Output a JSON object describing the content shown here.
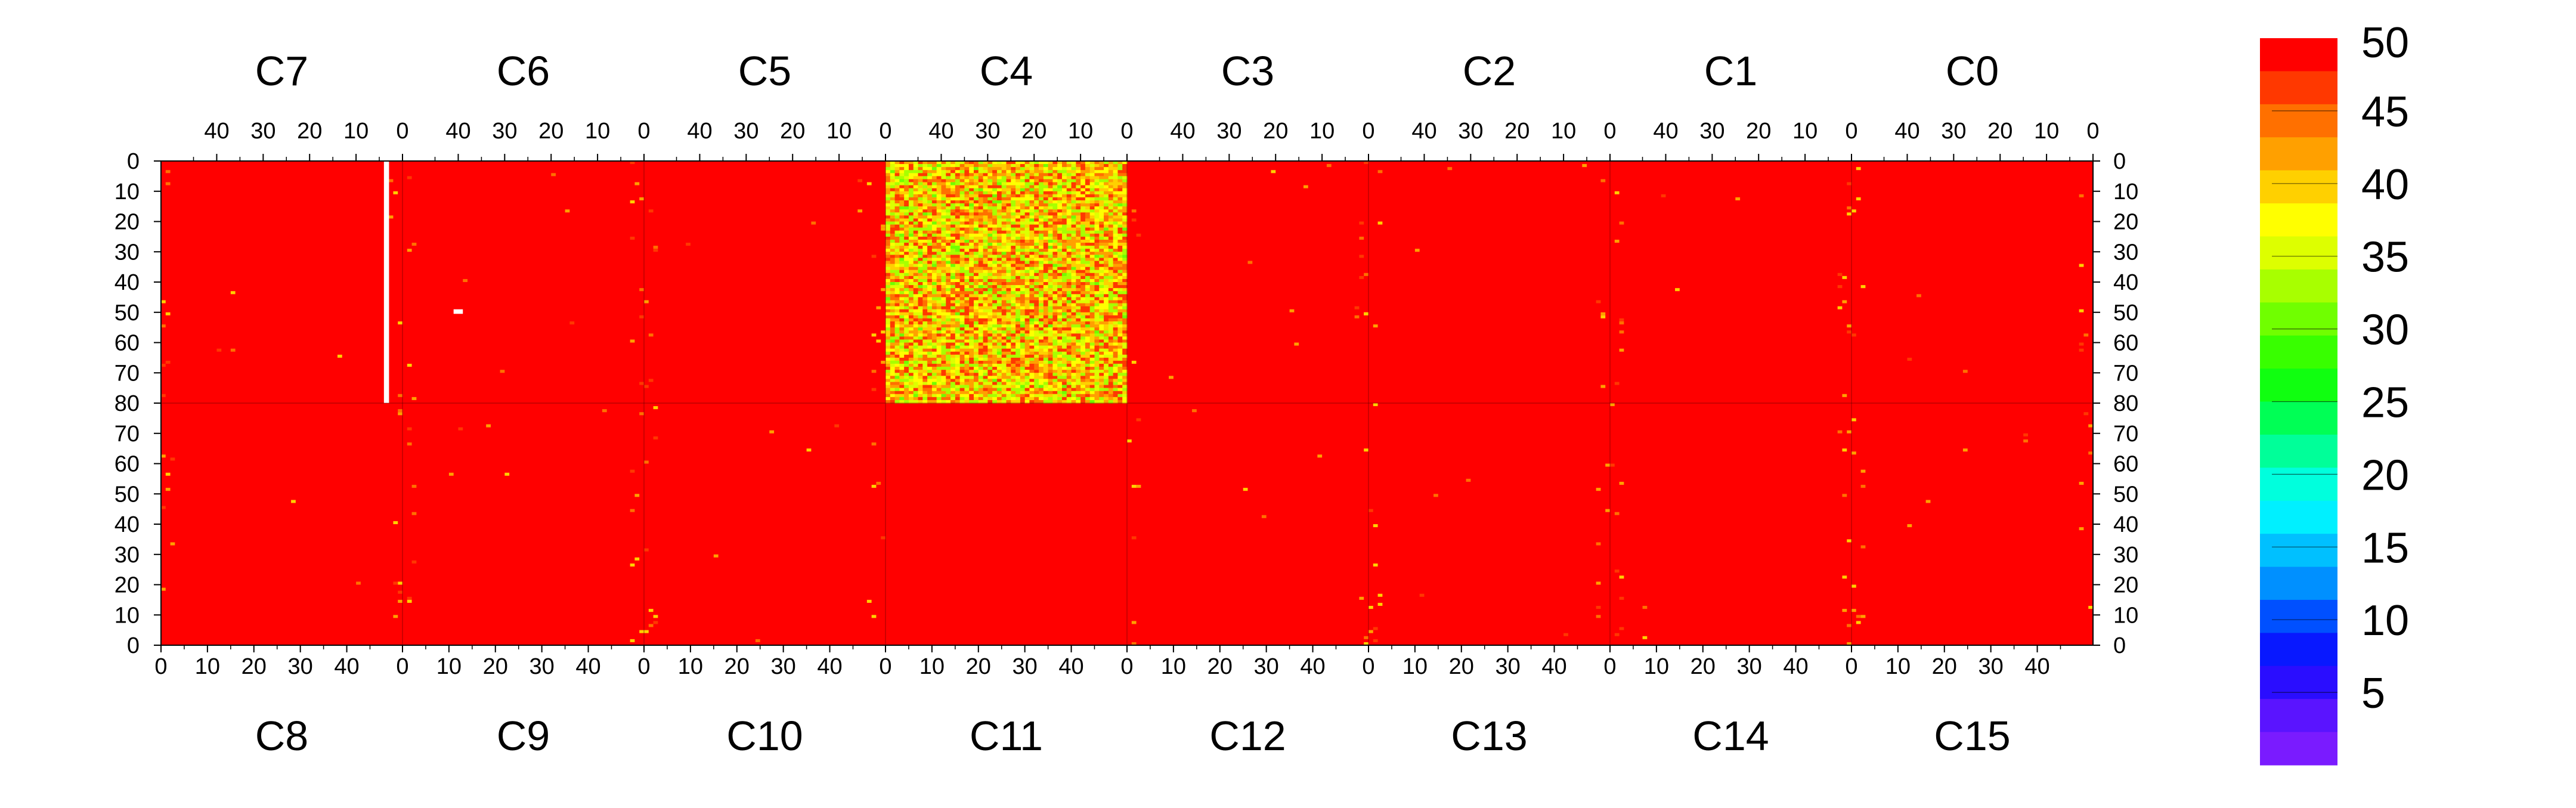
{
  "chart_data": {
    "type": "heatmap",
    "top_chips": [
      "C7",
      "C6",
      "C5",
      "C4",
      "C3",
      "C2",
      "C1",
      "C0"
    ],
    "bottom_chips": [
      "C8",
      "C9",
      "C10",
      "C11",
      "C12",
      "C13",
      "C14",
      "C15"
    ],
    "top_x_ticks": [
      "40",
      "30",
      "20",
      "10",
      "0"
    ],
    "bottom_x_ticks": [
      "0",
      "10",
      "20",
      "30",
      "40"
    ],
    "y_ticks": [
      "0",
      "10",
      "20",
      "30",
      "40",
      "50",
      "60",
      "70",
      "80",
      "70",
      "60",
      "50",
      "40",
      "30",
      "20",
      "10",
      "0"
    ],
    "columns_per_chip": 52,
    "rows_per_half": 80,
    "zrange": [
      0,
      50
    ],
    "colorbar_ticks": [
      "50",
      "45",
      "40",
      "35",
      "30",
      "25",
      "20",
      "15",
      "10",
      "5"
    ],
    "color_palette": [
      "#7a1bff",
      "#5a14ff",
      "#2a0dff",
      "#0818ff",
      "#0050ff",
      "#0090ff",
      "#00c0ff",
      "#00f0ff",
      "#00ffdd",
      "#00ff99",
      "#00ff55",
      "#10ff10",
      "#38ff00",
      "#70ff00",
      "#a8ff00",
      "#ddff00",
      "#ffff00",
      "#ffd000",
      "#ffa000",
      "#ff7000",
      "#ff3800",
      "#ff0000"
    ],
    "uniform_value": 50,
    "noisy_region": {
      "chip": "C4",
      "value_range": [
        33,
        50
      ],
      "description_values": "mixed 33-50"
    },
    "dead_column": {
      "chip": "C7",
      "column": 3,
      "rows": [
        0,
        80
      ]
    },
    "dead_pixel": {
      "chip": "C6",
      "column": 40,
      "row": 49
    }
  }
}
